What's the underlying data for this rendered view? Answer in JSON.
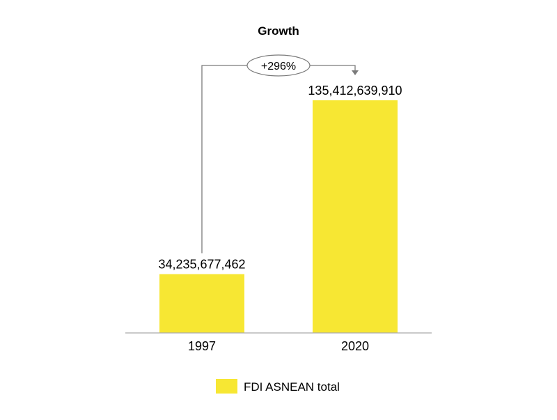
{
  "chart_data": {
    "type": "bar",
    "title": "Growth",
    "categories": [
      "1997",
      "2020"
    ],
    "series": [
      {
        "name": "FDI ASNEAN total",
        "values": [
          34235677462,
          135412639910
        ]
      }
    ],
    "value_labels": [
      "34,235,677,462",
      "135,412,639,910"
    ],
    "annotation": "+296%",
    "xlabel": "",
    "ylabel": "",
    "grid": false,
    "legend_position": "bottom",
    "colors": {
      "bar": "#f7e733",
      "axis": "#aaaaaa",
      "connector": "#7a7a7a"
    }
  }
}
